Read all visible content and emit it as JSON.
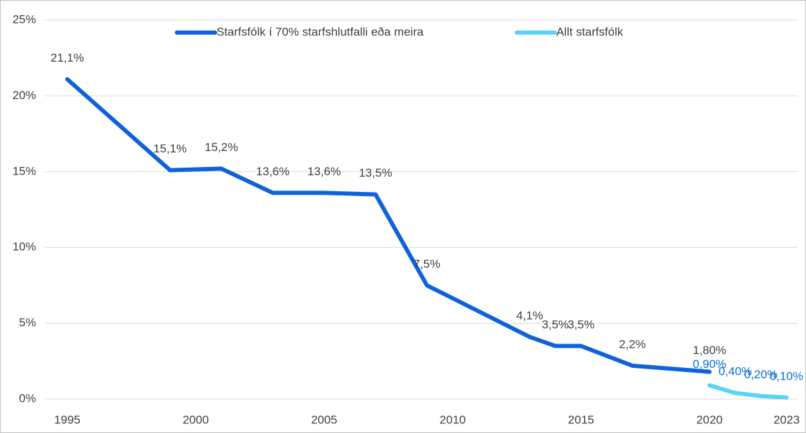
{
  "chart_data": {
    "type": "line",
    "series": [
      {
        "name": "Starfsfólk í 70% starfshlutfalli eða meira",
        "color": "#0f62d9",
        "label_color": "#404040",
        "x": [
          1995,
          1999,
          2001,
          2003,
          2005,
          2007,
          2009,
          2013,
          2014,
          2015,
          2017,
          2020
        ],
        "values": [
          21.1,
          15.1,
          15.2,
          13.6,
          13.6,
          13.5,
          7.5,
          4.1,
          3.5,
          3.5,
          2.2,
          1.8
        ],
        "value_labels": [
          "21,1%",
          "15,1%",
          "15,2%",
          "13,6%",
          "13,6%",
          "13,5%",
          "7,5%",
          "4,1%",
          "3,5%",
          "3,5%",
          "2,2%",
          "1,80%"
        ]
      },
      {
        "name": "Allt starfsfólk",
        "color": "#5bd3f6",
        "label_color": "#0a6fd0",
        "x": [
          2020,
          2021,
          2022,
          2023
        ],
        "values": [
          0.9,
          0.4,
          0.2,
          0.1
        ],
        "value_labels": [
          "0,90%",
          "0,40%",
          "0,20%",
          "0,10%"
        ]
      }
    ],
    "xlim": [
      1995,
      2023
    ],
    "xticks": [
      1995,
      2000,
      2005,
      2010,
      2015,
      2020,
      2023
    ],
    "ylim": [
      0,
      25
    ],
    "yticks": [
      {
        "value": 0,
        "label": "0%"
      },
      {
        "value": 5,
        "label": "5%"
      },
      {
        "value": 10,
        "label": "10%"
      },
      {
        "value": 15,
        "label": "15%"
      },
      {
        "value": 20,
        "label": "20%"
      },
      {
        "value": 25,
        "label": "25%"
      }
    ],
    "grid": true
  }
}
